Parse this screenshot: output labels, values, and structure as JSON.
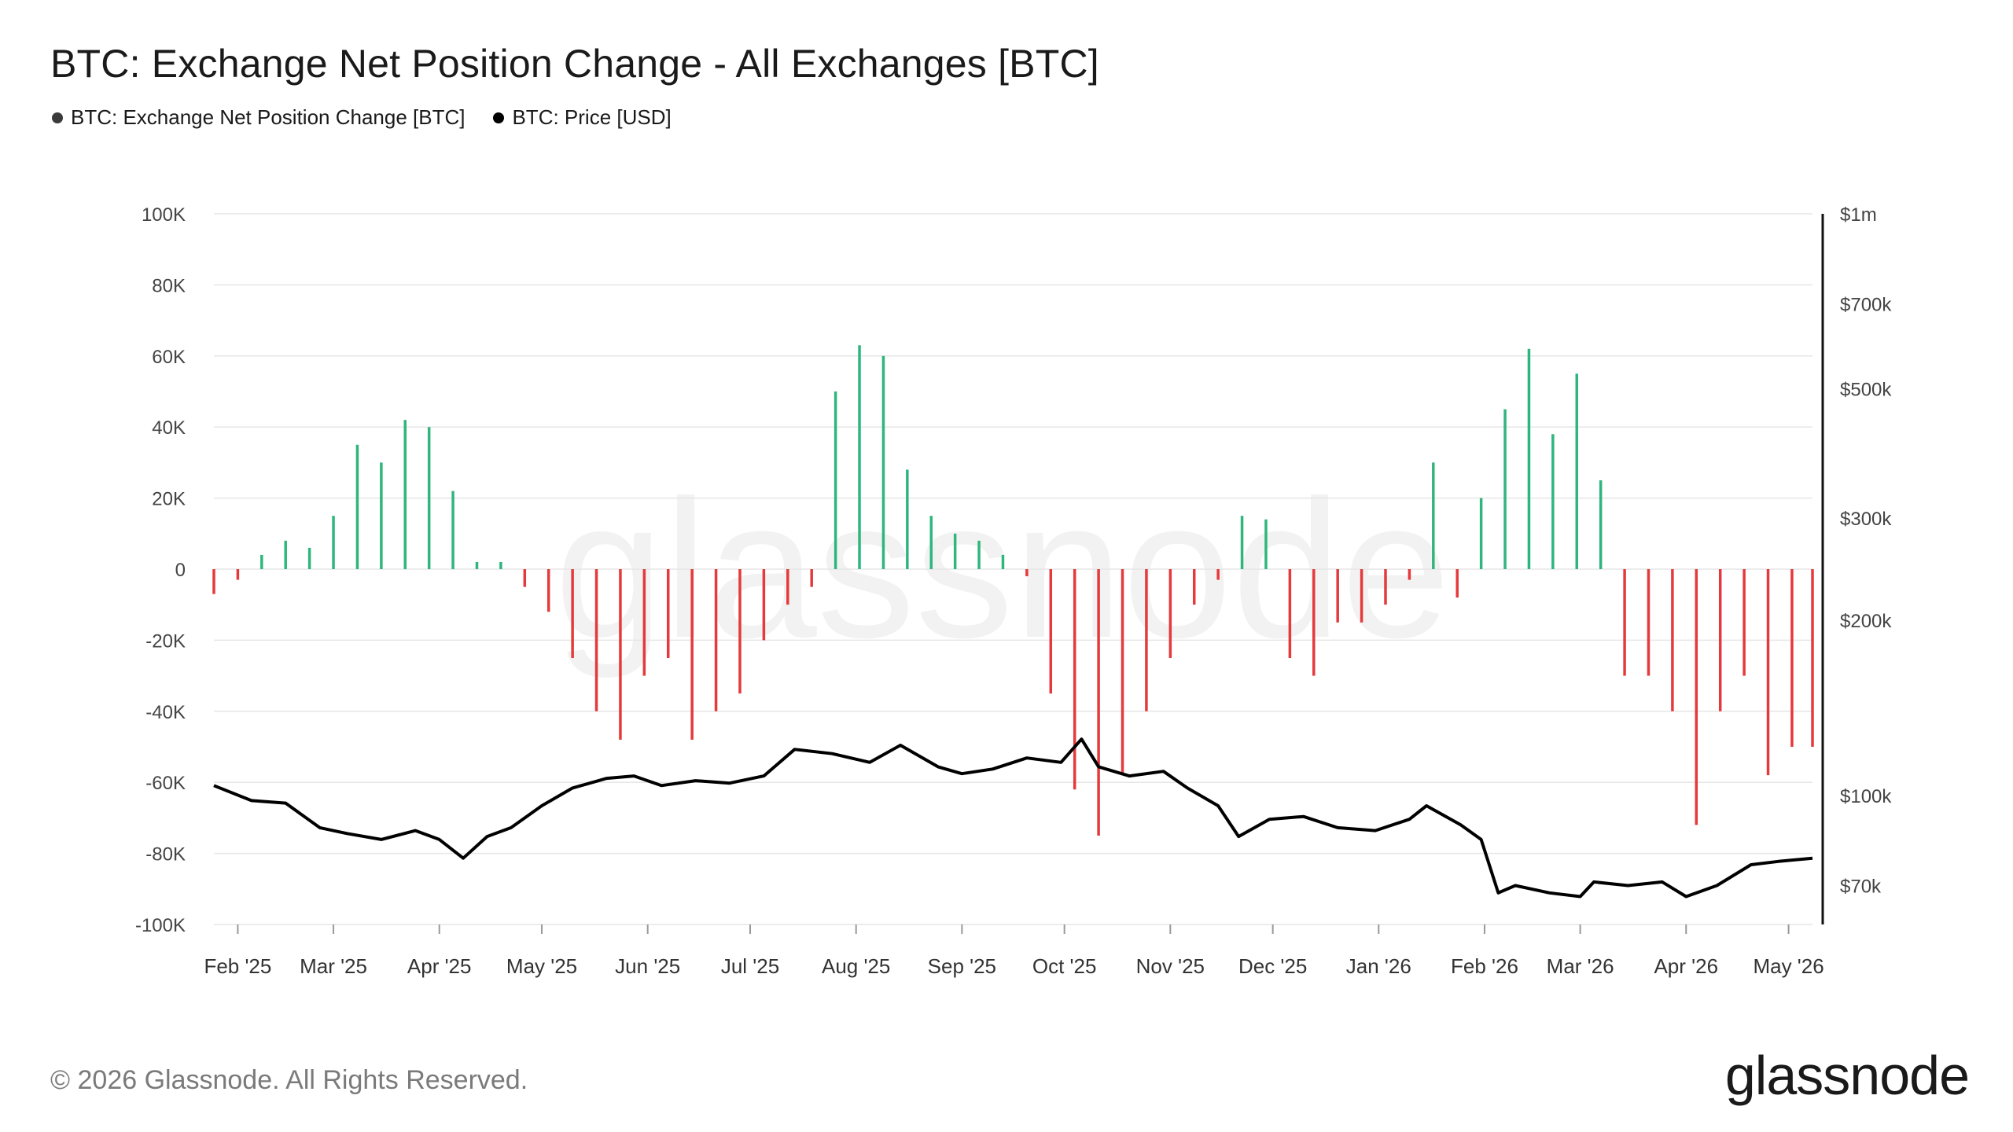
{
  "header": {
    "title": "BTC: Exchange Net Position Change - All Exchanges [BTC]"
  },
  "legend": [
    {
      "label": "BTC: Exchange Net Position Change [BTC]",
      "color": "#3a3a3a"
    },
    {
      "label": "BTC: Price [USD]",
      "color": "#000000"
    }
  ],
  "footer": {
    "copyright": "© 2026 Glassnode. All Rights Reserved.",
    "brand": "glassnode"
  },
  "watermark": "glassnode",
  "colors": {
    "positive": "#2eb67d",
    "negative": "#e5393b",
    "price": "#000000",
    "grid": "#e6e6e6"
  },
  "chart_data": {
    "type": "bar",
    "title": "BTC: Exchange Net Position Change - All Exchanges [BTC]",
    "x_tick_labels": [
      "Feb '25",
      "Mar '25",
      "Apr '25",
      "May '25",
      "Jun '25",
      "Jul '25",
      "Aug '25",
      "Sep '25",
      "Oct '25",
      "Nov '25",
      "Dec '25",
      "Jan '26",
      "Feb '26",
      "Mar '26",
      "Apr '26",
      "May '26"
    ],
    "x_range": [
      "2025-01-25",
      "2026-05-08"
    ],
    "y_left": {
      "min": -100000,
      "max": 100000,
      "ticks": [
        100000,
        80000,
        60000,
        40000,
        20000,
        0,
        -20000,
        -40000,
        -60000,
        -80000,
        -100000
      ],
      "tick_labels": [
        "100K",
        "80K",
        "60K",
        "40K",
        "20K",
        "0",
        "-20K",
        "-40K",
        "-60K",
        "-80K",
        "-100K"
      ]
    },
    "y_right": {
      "scale": "log",
      "min": 60000,
      "max": 1000000,
      "ticks": [
        1000000,
        700000,
        500000,
        300000,
        200000,
        100000,
        70000
      ],
      "tick_labels": [
        "$1m",
        "$700k",
        "$500k",
        "$300k",
        "$200k",
        "$100k",
        "$70k"
      ]
    },
    "grid": true,
    "legend_position": "top-left",
    "series": [
      {
        "name": "BTC: Exchange Net Position Change [BTC]",
        "type": "bar",
        "points": [
          [
            "2025-01-25",
            -7000
          ],
          [
            "2025-02-01",
            -3000
          ],
          [
            "2025-02-08",
            4000
          ],
          [
            "2025-02-15",
            8000
          ],
          [
            "2025-02-22",
            6000
          ],
          [
            "2025-03-01",
            15000
          ],
          [
            "2025-03-08",
            35000
          ],
          [
            "2025-03-15",
            30000
          ],
          [
            "2025-03-22",
            42000
          ],
          [
            "2025-03-29",
            40000
          ],
          [
            "2025-04-05",
            22000
          ],
          [
            "2025-04-12",
            2000
          ],
          [
            "2025-04-19",
            2000
          ],
          [
            "2025-04-26",
            -5000
          ],
          [
            "2025-05-03",
            -12000
          ],
          [
            "2025-05-10",
            -25000
          ],
          [
            "2025-05-17",
            -40000
          ],
          [
            "2025-05-24",
            -48000
          ],
          [
            "2025-05-31",
            -30000
          ],
          [
            "2025-06-07",
            -25000
          ],
          [
            "2025-06-14",
            -48000
          ],
          [
            "2025-06-21",
            -40000
          ],
          [
            "2025-06-28",
            -35000
          ],
          [
            "2025-07-05",
            -20000
          ],
          [
            "2025-07-12",
            -10000
          ],
          [
            "2025-07-19",
            -5000
          ],
          [
            "2025-07-26",
            50000
          ],
          [
            "2025-08-02",
            63000
          ],
          [
            "2025-08-09",
            60000
          ],
          [
            "2025-08-16",
            28000
          ],
          [
            "2025-08-23",
            15000
          ],
          [
            "2025-08-30",
            10000
          ],
          [
            "2025-09-06",
            8000
          ],
          [
            "2025-09-13",
            4000
          ],
          [
            "2025-09-20",
            -2000
          ],
          [
            "2025-09-27",
            -35000
          ],
          [
            "2025-10-04",
            -62000
          ],
          [
            "2025-10-11",
            -75000
          ],
          [
            "2025-10-18",
            -58000
          ],
          [
            "2025-10-25",
            -40000
          ],
          [
            "2025-11-01",
            -25000
          ],
          [
            "2025-11-08",
            -10000
          ],
          [
            "2025-11-15",
            -3000
          ],
          [
            "2025-11-22",
            15000
          ],
          [
            "2025-11-29",
            14000
          ],
          [
            "2025-12-06",
            -25000
          ],
          [
            "2025-12-13",
            -30000
          ],
          [
            "2025-12-20",
            -15000
          ],
          [
            "2025-12-27",
            -15000
          ],
          [
            "2026-01-03",
            -10000
          ],
          [
            "2026-01-10",
            -3000
          ],
          [
            "2026-01-17",
            30000
          ],
          [
            "2026-01-24",
            -8000
          ],
          [
            "2026-01-31",
            20000
          ],
          [
            "2026-02-07",
            45000
          ],
          [
            "2026-02-14",
            62000
          ],
          [
            "2026-02-21",
            38000
          ],
          [
            "2026-02-28",
            55000
          ],
          [
            "2026-03-07",
            25000
          ],
          [
            "2026-03-14",
            -30000
          ],
          [
            "2026-03-21",
            -30000
          ],
          [
            "2026-03-28",
            -40000
          ],
          [
            "2026-04-04",
            -72000
          ],
          [
            "2026-04-11",
            -40000
          ],
          [
            "2026-04-18",
            -30000
          ],
          [
            "2026-04-25",
            -58000
          ],
          [
            "2026-05-02",
            -50000
          ],
          [
            "2026-05-08",
            -50000
          ]
        ]
      },
      {
        "name": "BTC: Price [USD]",
        "type": "line",
        "points": [
          [
            "2025-01-25",
            104000
          ],
          [
            "2025-02-05",
            98000
          ],
          [
            "2025-02-15",
            97000
          ],
          [
            "2025-02-25",
            88000
          ],
          [
            "2025-03-05",
            86000
          ],
          [
            "2025-03-15",
            84000
          ],
          [
            "2025-03-25",
            87000
          ],
          [
            "2025-04-01",
            84000
          ],
          [
            "2025-04-08",
            78000
          ],
          [
            "2025-04-15",
            85000
          ],
          [
            "2025-04-22",
            88000
          ],
          [
            "2025-05-01",
            96000
          ],
          [
            "2025-05-10",
            103000
          ],
          [
            "2025-05-20",
            107000
          ],
          [
            "2025-05-28",
            108000
          ],
          [
            "2025-06-05",
            104000
          ],
          [
            "2025-06-15",
            106000
          ],
          [
            "2025-06-25",
            105000
          ],
          [
            "2025-07-05",
            108000
          ],
          [
            "2025-07-14",
            120000
          ],
          [
            "2025-07-25",
            118000
          ],
          [
            "2025-08-05",
            114000
          ],
          [
            "2025-08-14",
            122000
          ],
          [
            "2025-08-25",
            112000
          ],
          [
            "2025-09-01",
            109000
          ],
          [
            "2025-09-10",
            111000
          ],
          [
            "2025-09-20",
            116000
          ],
          [
            "2025-09-30",
            114000
          ],
          [
            "2025-10-06",
            125000
          ],
          [
            "2025-10-11",
            112000
          ],
          [
            "2025-10-20",
            108000
          ],
          [
            "2025-10-30",
            110000
          ],
          [
            "2025-11-06",
            103000
          ],
          [
            "2025-11-15",
            96000
          ],
          [
            "2025-11-21",
            85000
          ],
          [
            "2025-11-30",
            91000
          ],
          [
            "2025-12-10",
            92000
          ],
          [
            "2025-12-20",
            88000
          ],
          [
            "2025-12-31",
            87000
          ],
          [
            "2026-01-10",
            91000
          ],
          [
            "2026-01-15",
            96000
          ],
          [
            "2026-01-25",
            89000
          ],
          [
            "2026-01-31",
            84000
          ],
          [
            "2026-02-05",
            68000
          ],
          [
            "2026-02-10",
            70000
          ],
          [
            "2026-02-20",
            68000
          ],
          [
            "2026-03-01",
            67000
          ],
          [
            "2026-03-05",
            71000
          ],
          [
            "2026-03-15",
            70000
          ],
          [
            "2026-03-25",
            71000
          ],
          [
            "2026-04-01",
            67000
          ],
          [
            "2026-04-10",
            70000
          ],
          [
            "2026-04-20",
            76000
          ],
          [
            "2026-04-28",
            77000
          ],
          [
            "2026-05-08",
            78000
          ]
        ]
      }
    ]
  }
}
